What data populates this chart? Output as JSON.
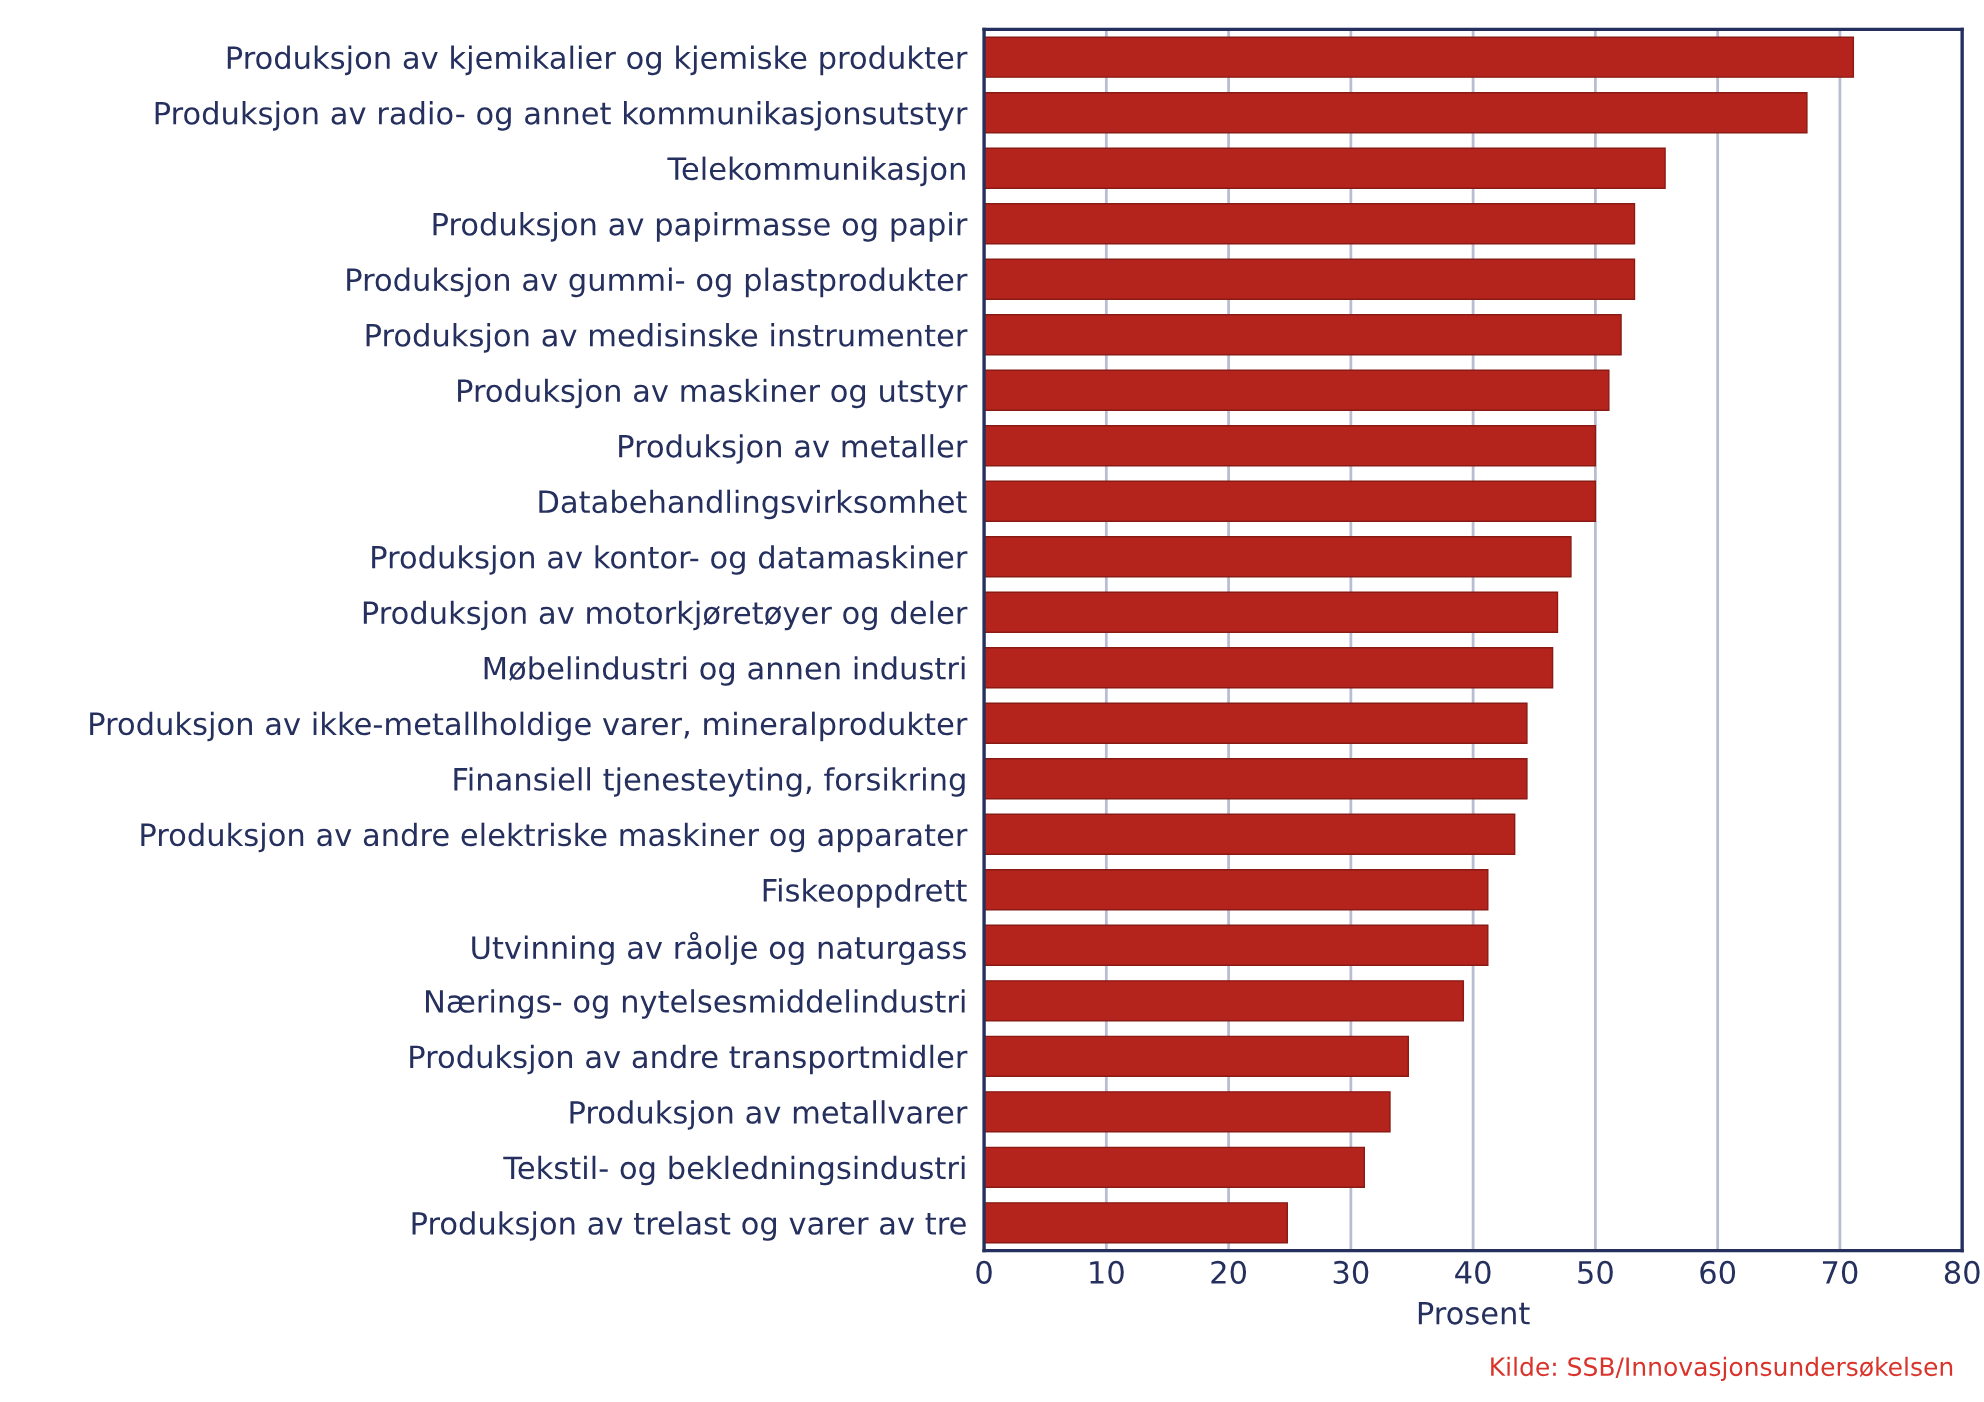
{
  "chart_data": {
    "type": "bar",
    "orientation": "horizontal",
    "xlabel": "Prosent",
    "categories": [
      "Produksjon av kjemikalier og kjemiske produkter",
      "Produksjon av radio- og annet kommunikasjonsutstyr",
      "Telekommunikasjon",
      "Produksjon av papirmasse og papir",
      "Produksjon av gummi- og plastprodukter",
      "Produksjon av medisinske instrumenter",
      "Produksjon av maskiner og utstyr",
      "Produksjon av metaller",
      "Databehandlingsvirksomhet",
      "Produksjon av kontor- og datamaskiner",
      "Produksjon av motorkjøretøyer og deler",
      "Møbelindustri og annen industri",
      "Produksjon av ikke-metallholdige varer, mineralprodukter",
      "Finansiell tjenesteyting, forsikring",
      "Produksjon av andre elektriske maskiner og apparater",
      "Fiskeoppdrett",
      "Utvinning av råolje og naturgass",
      "Nærings- og nytelsesmiddelindustri",
      "Produksjon av andre transportmidler",
      "Produksjon av metallvarer",
      "Tekstil- og bekledningsindustri",
      "Produksjon av trelast og varer av tre"
    ],
    "values": [
      71.1,
      67.3,
      55.7,
      53.2,
      53.2,
      52.1,
      51.1,
      50.0,
      50.0,
      48.0,
      46.9,
      46.5,
      44.4,
      44.4,
      43.4,
      41.2,
      41.2,
      39.2,
      34.7,
      33.2,
      31.1,
      24.8
    ],
    "color": "#b5241c",
    "xlim": [
      0,
      80
    ],
    "xticks": [
      0,
      10,
      20,
      30,
      40,
      50,
      60,
      70,
      80
    ],
    "grid": "x",
    "annotations": [
      "Kilde: SSB/Innovasjonsundersøkelsen"
    ]
  }
}
